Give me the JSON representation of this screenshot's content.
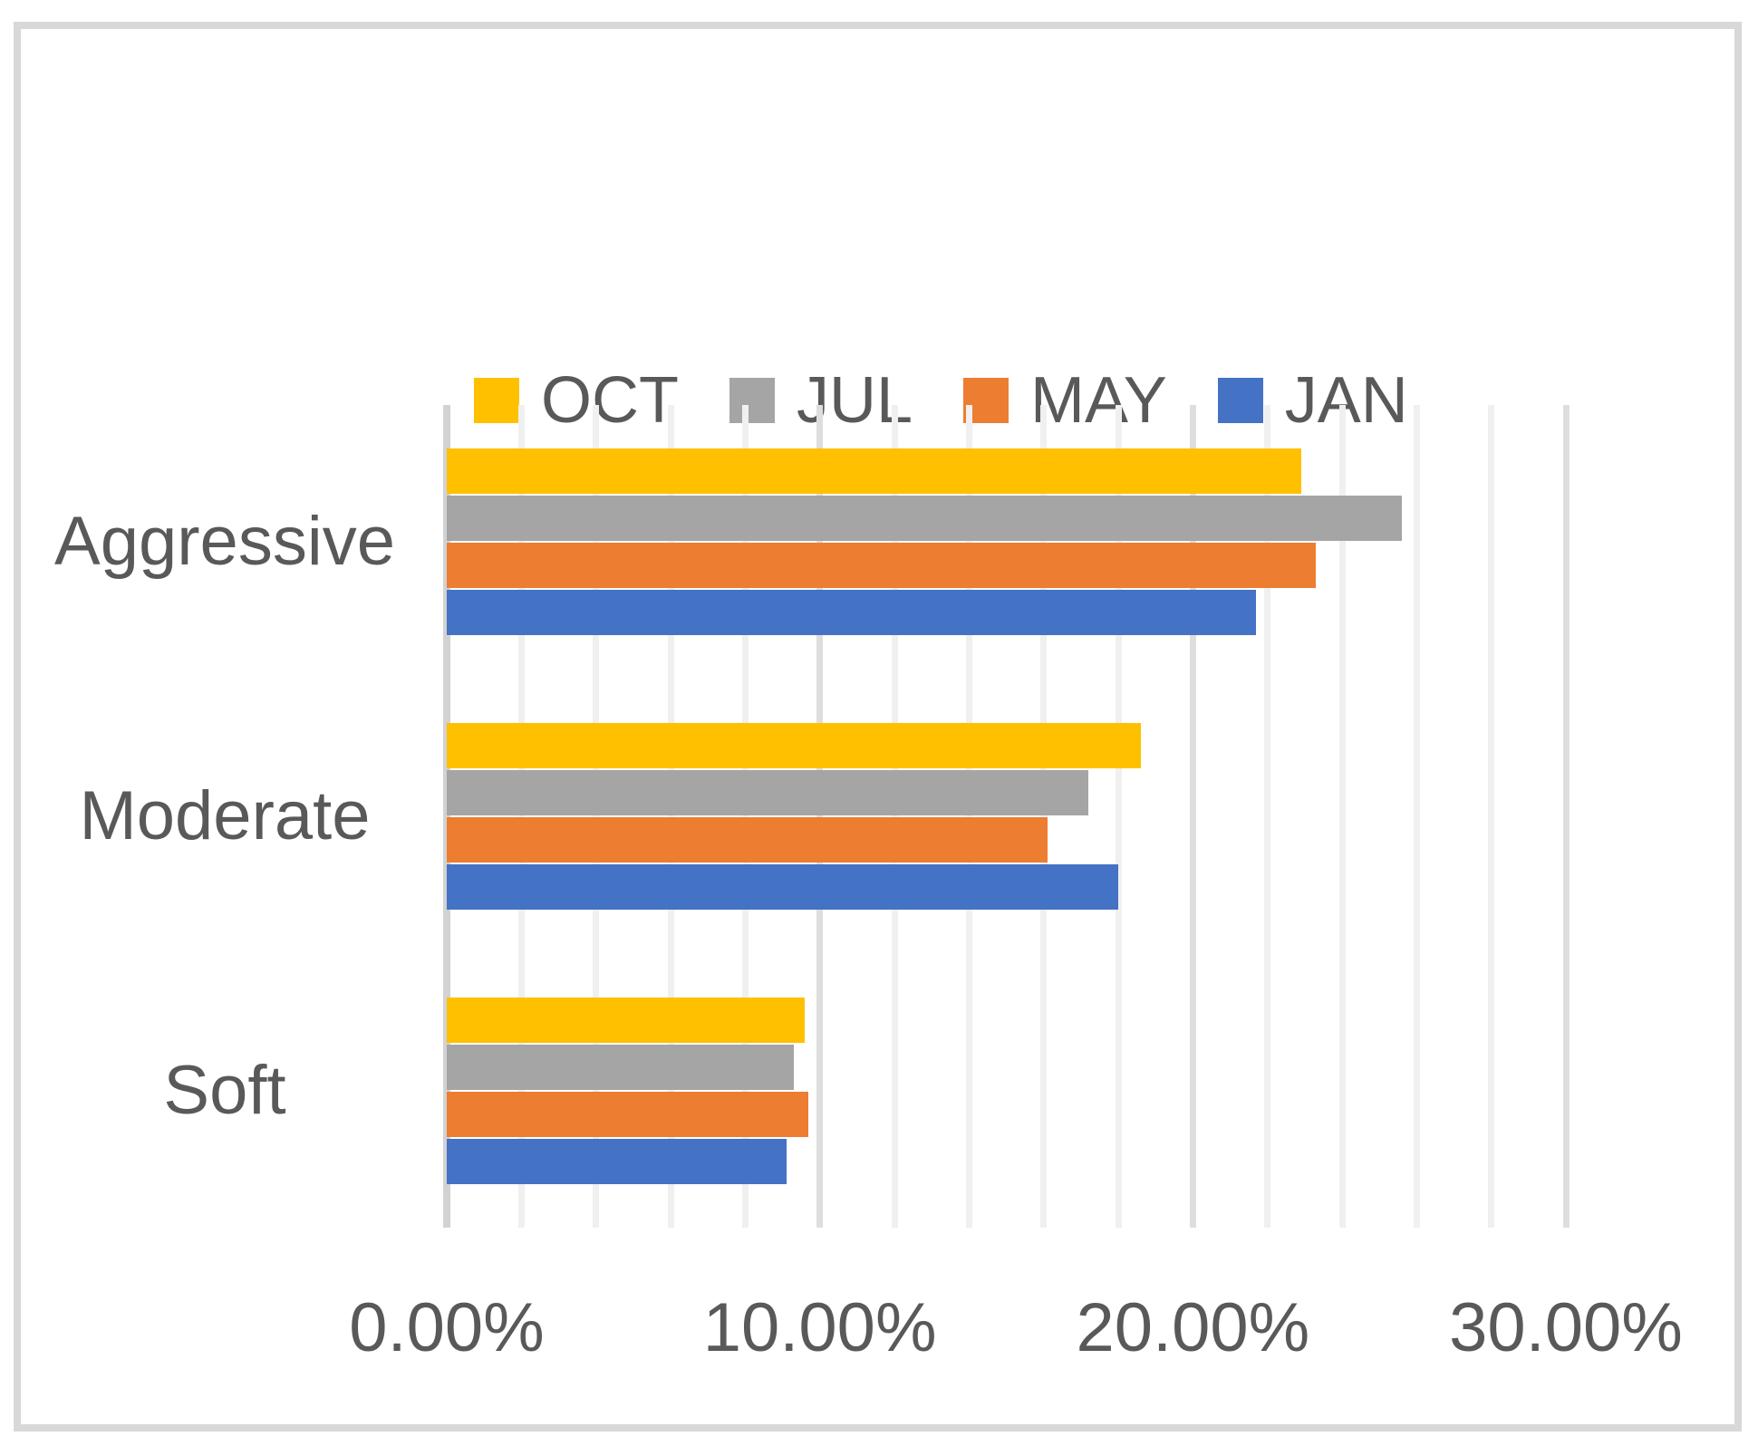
{
  "chart_data": {
    "type": "bar",
    "orientation": "horizontal",
    "title": "",
    "categories": [
      "Aggressive",
      "Moderate",
      "Soft"
    ],
    "series": [
      {
        "name": "OCT",
        "color": "#FFC000",
        "values": [
          22.9,
          18.6,
          9.6
        ]
      },
      {
        "name": "JUL",
        "color": "#A5A5A5",
        "values": [
          25.6,
          17.2,
          9.3
        ]
      },
      {
        "name": "MAY",
        "color": "#ED7D31",
        "values": [
          23.3,
          16.1,
          9.7
        ]
      },
      {
        "name": "JAN",
        "color": "#4472C4",
        "values": [
          21.7,
          18.0,
          9.1
        ]
      }
    ],
    "x_axis": {
      "min": 0,
      "max": 30,
      "major_unit": 10,
      "minor_unit": 2,
      "tick_values": [
        0,
        10,
        20,
        30
      ],
      "tick_labels": [
        "0.00%",
        "10.00%",
        "20.00%",
        "30.00%"
      ]
    },
    "y_axis": {
      "labels": [
        "Aggressive",
        "Moderate",
        "Soft"
      ]
    },
    "legend": {
      "position": "top",
      "entries": [
        "OCT",
        "JUL",
        "MAY",
        "JAN"
      ]
    },
    "grid": true,
    "styles": {
      "text_color": "#595959",
      "frame_border_color": "#d8d8d8",
      "minor_gridline_color": "#f0f0f0",
      "major_gridline_color": "#dedede",
      "axis_line_color": "#d2d2d2"
    }
  }
}
